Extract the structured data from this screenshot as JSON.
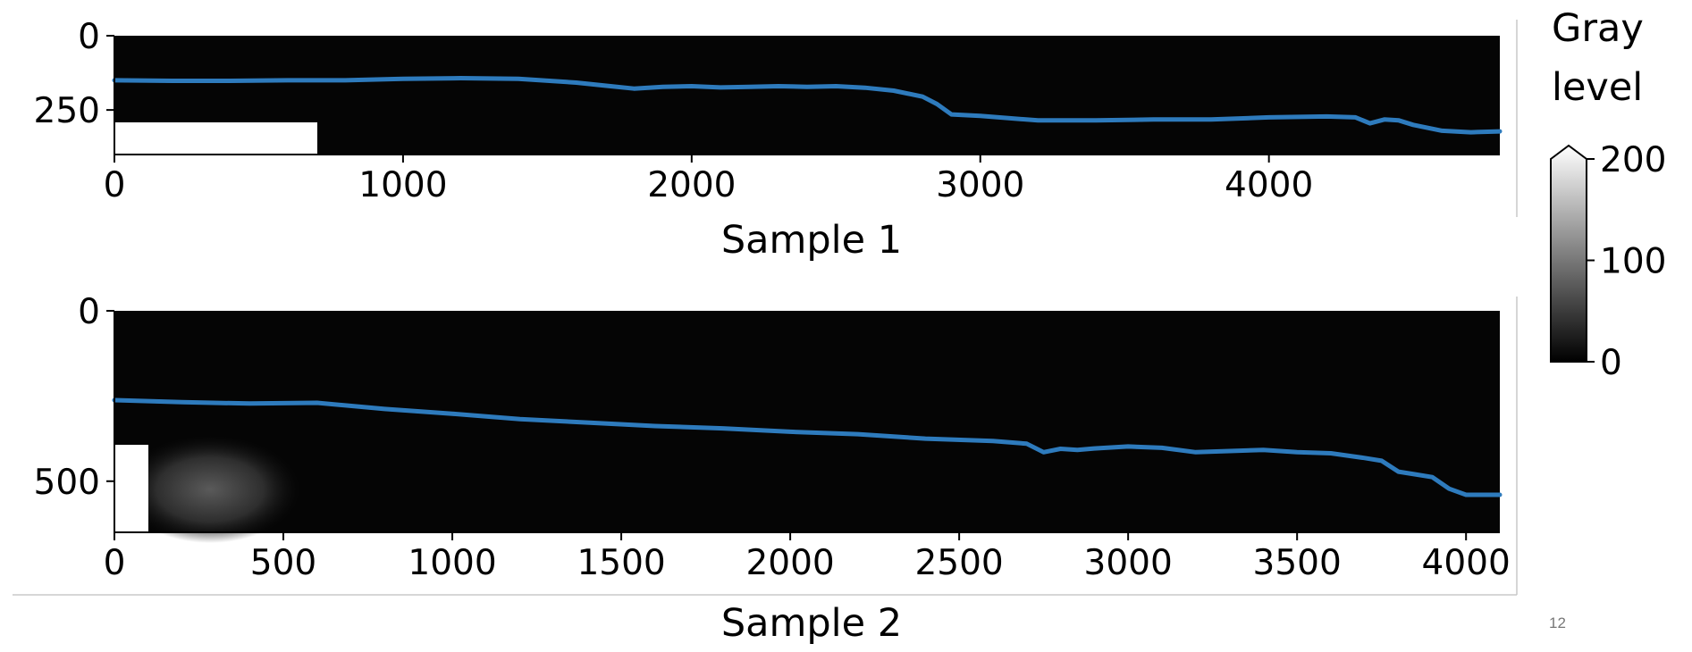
{
  "chart_data": [
    {
      "type": "image",
      "caption": "Sample 1",
      "xlim": [
        0,
        4800
      ],
      "ylim": [
        400,
        0
      ],
      "xticks": [
        0,
        1000,
        2000,
        3000,
        4000
      ],
      "xtick_labels": [
        "0",
        "1000",
        "2000",
        "3000",
        "4000"
      ],
      "yticks": [
        0,
        250
      ],
      "ytick_labels": [
        "0",
        "250"
      ],
      "scale_bar": {
        "x": [
          0,
          700
        ],
        "y": [
          300,
          400
        ]
      },
      "series": [
        {
          "color": "#2e7bbd",
          "x": [
            0,
            200,
            400,
            600,
            800,
            1000,
            1200,
            1400,
            1600,
            1700,
            1800,
            1900,
            2000,
            2100,
            2200,
            2300,
            2400,
            2500,
            2600,
            2700,
            2800,
            2850,
            2900,
            3000,
            3200,
            3400,
            3600,
            3800,
            4000,
            4200,
            4300,
            4350,
            4400,
            4450,
            4500,
            4600,
            4700,
            4800
          ],
          "y": [
            150,
            152,
            152,
            150,
            150,
            145,
            143,
            145,
            158,
            168,
            178,
            172,
            170,
            174,
            172,
            170,
            172,
            170,
            175,
            185,
            205,
            230,
            265,
            270,
            285,
            285,
            282,
            282,
            275,
            272,
            275,
            295,
            282,
            285,
            300,
            320,
            325,
            322
          ]
        }
      ]
    },
    {
      "type": "image",
      "caption": "Sample 2",
      "xlim": [
        0,
        4100
      ],
      "ylim": [
        650,
        0
      ],
      "xticks": [
        0,
        500,
        1000,
        1500,
        2000,
        2500,
        3000,
        3500,
        4000
      ],
      "xtick_labels": [
        "0",
        "500",
        "1000",
        "1500",
        "2000",
        "2500",
        "3000",
        "3500",
        "4000"
      ],
      "yticks": [
        0,
        500
      ],
      "ytick_labels": [
        "0",
        "500"
      ],
      "scale_bar": {
        "x": [
          0,
          100
        ],
        "y": [
          390,
          650
        ]
      },
      "series": [
        {
          "color": "#2e7bbd",
          "x": [
            0,
            200,
            400,
            600,
            800,
            1000,
            1200,
            1400,
            1600,
            1800,
            2000,
            2200,
            2400,
            2600,
            2700,
            2750,
            2800,
            2850,
            2900,
            3000,
            3100,
            3200,
            3400,
            3500,
            3600,
            3700,
            3750,
            3800,
            3850,
            3900,
            3950,
            4000,
            4100
          ],
          "y": [
            262,
            268,
            272,
            270,
            288,
            302,
            318,
            328,
            338,
            345,
            355,
            362,
            375,
            382,
            390,
            415,
            405,
            408,
            404,
            398,
            402,
            415,
            408,
            415,
            418,
            432,
            440,
            472,
            480,
            488,
            522,
            540,
            540
          ]
        }
      ]
    }
  ],
  "colorbar": {
    "title_line1": "Gray",
    "title_line2": "level",
    "range": [
      0,
      200
    ],
    "ticks": [
      "200",
      "100",
      "0"
    ],
    "extend": "max"
  },
  "page_number": "12"
}
